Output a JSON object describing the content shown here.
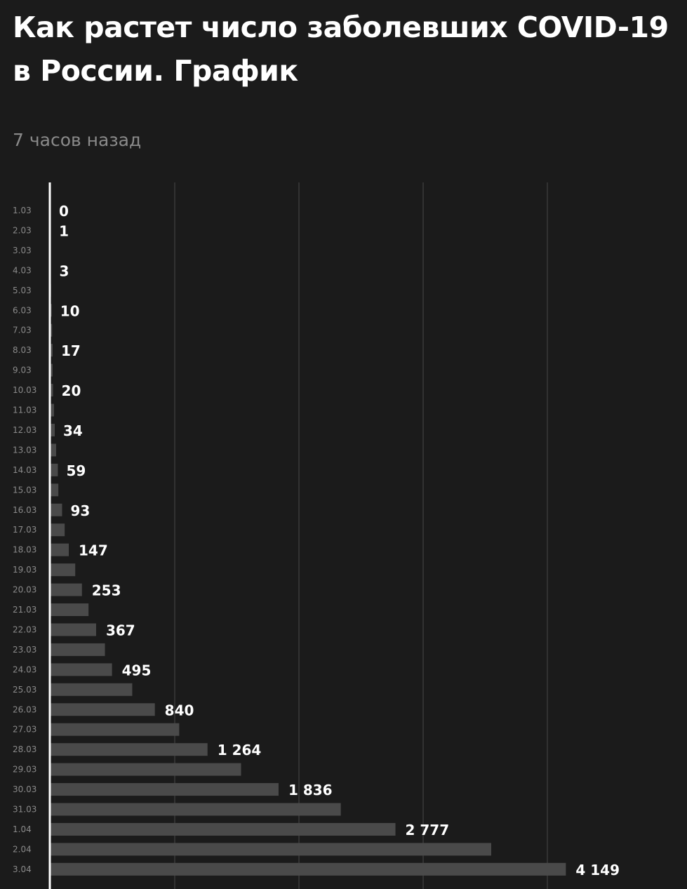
{
  "header": {
    "title": "Как растет число заболевших COVID-19 в России. График",
    "timestamp": "7 часов назад"
  },
  "colors": {
    "background": "#1b1b1b",
    "bar": "#4a4a4a",
    "grid": "#3a3a3a",
    "axis": "#ffffff",
    "label": "#ffffff",
    "tick": "#8a8a8a"
  },
  "chart_data": {
    "type": "bar",
    "orientation": "horizontal",
    "categories": [
      "1.03",
      "2.03",
      "3.03",
      "4.03",
      "5.03",
      "6.03",
      "7.03",
      "8.03",
      "9.03",
      "10.03",
      "11.03",
      "12.03",
      "13.03",
      "14.03",
      "15.03",
      "16.03",
      "17.03",
      "18.03",
      "19.03",
      "20.03",
      "21.03",
      "22.03",
      "23.03",
      "24.03",
      "25.03",
      "26.03",
      "27.03",
      "28.03",
      "29.03",
      "30.03",
      "31.03",
      "1.04",
      "2.04",
      "3.04"
    ],
    "values": [
      0,
      1,
      3,
      3,
      4,
      10,
      13,
      17,
      17,
      20,
      28,
      34,
      45,
      59,
      63,
      93,
      114,
      147,
      199,
      253,
      306,
      367,
      438,
      495,
      658,
      840,
      1036,
      1264,
      1534,
      1836,
      2337,
      2777,
      3548,
      4149
    ],
    "data_labels": [
      "0",
      "1",
      null,
      "3",
      null,
      "10",
      null,
      "17",
      null,
      "20",
      null,
      "34",
      null,
      "59",
      null,
      "93",
      null,
      "147",
      null,
      "253",
      null,
      "367",
      null,
      "495",
      null,
      "840",
      null,
      "1 264",
      null,
      "1 836",
      null,
      "2 777",
      null,
      "4 149"
    ],
    "xlim": [
      0,
      5000
    ],
    "grid": true,
    "gridline_values": [
      1000,
      2000,
      3000,
      4000
    ],
    "legend": "none"
  }
}
